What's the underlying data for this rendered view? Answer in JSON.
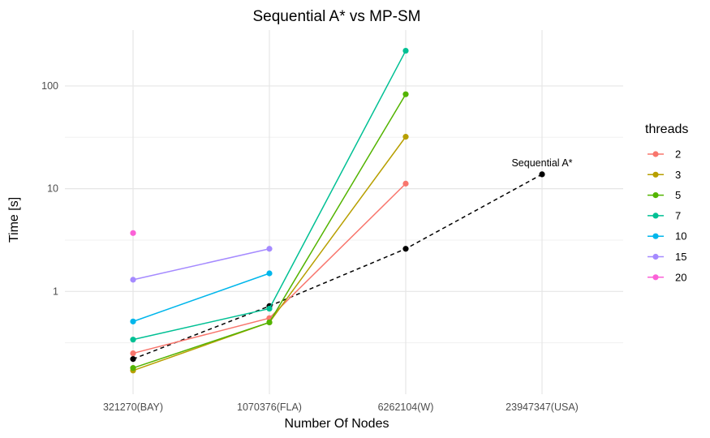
{
  "chart_data": {
    "type": "line",
    "title": "Sequential A* vs MP-SM",
    "xlabel": "Number Of Nodes",
    "ylabel": "Time [s]",
    "y_scale": "log10",
    "ylim": [
      0.1,
      350
    ],
    "y_ticks": [
      1,
      10,
      100
    ],
    "y_tick_labels": [
      "1",
      "10",
      "100"
    ],
    "categories": [
      "321270(BAY)",
      "1070376(FLA)",
      "6262104(W)",
      "23947347(USA)"
    ],
    "grid": true,
    "legend": {
      "title": "threads",
      "position": "right"
    },
    "series": [
      {
        "name": "2",
        "color": "#F8766D",
        "values": [
          0.25,
          0.55,
          11.2,
          null
        ]
      },
      {
        "name": "3",
        "color": "#B79F00",
        "values": [
          0.17,
          0.5,
          32,
          null
        ]
      },
      {
        "name": "5",
        "color": "#53B400",
        "values": [
          0.18,
          0.5,
          83,
          null
        ]
      },
      {
        "name": "7",
        "color": "#00C094",
        "values": [
          0.34,
          0.68,
          220,
          null
        ]
      },
      {
        "name": "10",
        "color": "#00B6EB",
        "values": [
          0.51,
          1.5,
          null,
          null
        ]
      },
      {
        "name": "15",
        "color": "#A58AFF",
        "values": [
          1.3,
          2.6,
          null,
          null
        ]
      },
      {
        "name": "20",
        "color": "#FB61D7",
        "values": [
          3.7,
          null,
          null,
          null
        ]
      }
    ],
    "baseline": {
      "label": "Sequential A*",
      "color": "#000000",
      "style": "dashed",
      "values": [
        0.22,
        0.72,
        2.6,
        13.8
      ]
    }
  }
}
